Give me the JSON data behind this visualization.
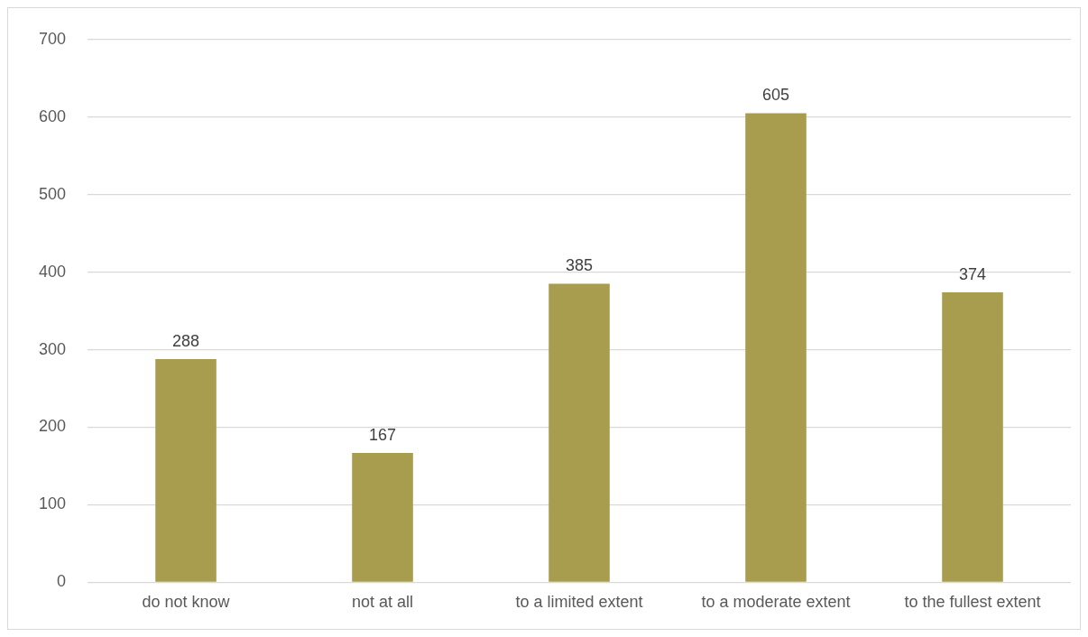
{
  "chart_data": {
    "type": "bar",
    "categories": [
      "do not know",
      "not at all",
      "to a limited extent",
      "to a moderate extent",
      "to the fullest extent"
    ],
    "values": [
      288,
      167,
      385,
      605,
      374
    ],
    "color": "#a89c4f",
    "ylim": [
      0,
      700
    ],
    "yticks": [
      0,
      100,
      200,
      300,
      400,
      500,
      600,
      700
    ],
    "grid": "y",
    "data_labels": true
  }
}
